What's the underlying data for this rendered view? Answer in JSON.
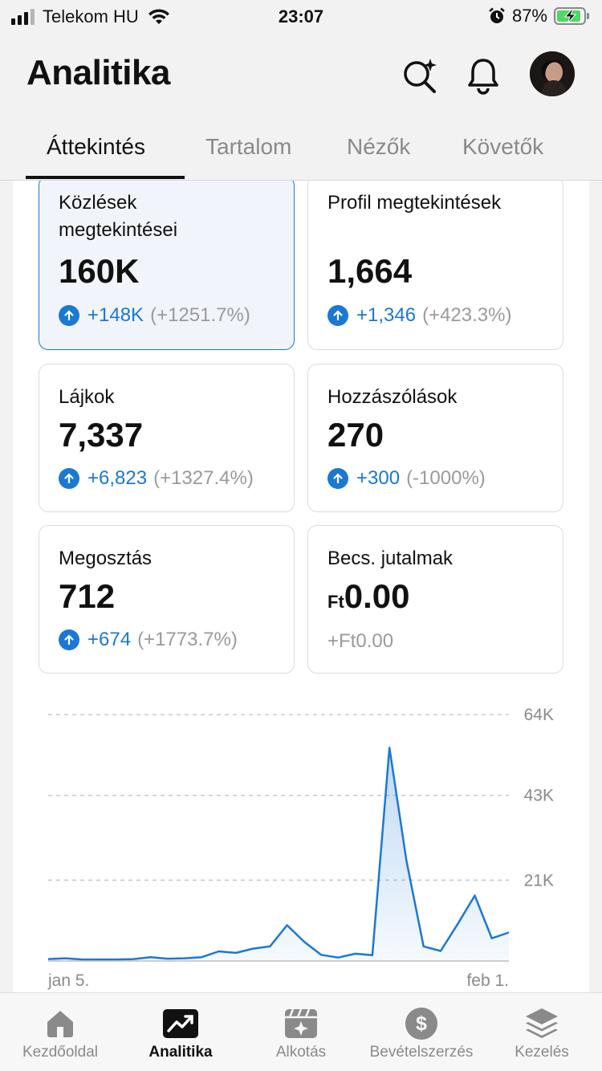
{
  "status_bar": {
    "carrier": "Telekom HU",
    "time": "23:07",
    "battery_percent": "87%"
  },
  "header": {
    "title": "Analitika",
    "icons": [
      "search-sparkle-icon",
      "bell-icon",
      "avatar"
    ]
  },
  "tabs": [
    {
      "label": "Áttekintés",
      "active": true
    },
    {
      "label": "Tartalom",
      "active": false
    },
    {
      "label": "Nézők",
      "active": false
    },
    {
      "label": "Követők",
      "active": false
    }
  ],
  "metrics": {
    "post_views": {
      "label_line1": "Közlések",
      "label_line2": "megtekintései",
      "value": "160K",
      "delta": "+148K",
      "delta_pct": "(+1251.7%)"
    },
    "profile_views": {
      "label": "Profil megtekintések",
      "value": "1,664",
      "delta": "+1,346",
      "delta_pct": "(+423.3%)"
    },
    "likes": {
      "label": "Lájkok",
      "value": "7,337",
      "delta": "+6,823",
      "delta_pct": "(+1327.4%)"
    },
    "comments": {
      "label": "Hozzászólások",
      "value": "270",
      "delta": "+300",
      "delta_pct": "(-1000%)"
    },
    "shares": {
      "label": "Megosztás",
      "value": "712",
      "delta": "+674",
      "delta_pct": "(+1773.7%)"
    },
    "rewards": {
      "label": "Becs. jutalmak",
      "currency": "Ft",
      "value": "0.00",
      "delta": "+Ft0.00"
    }
  },
  "chart_data": {
    "type": "area",
    "title": "",
    "x_start_label": "jan 5.",
    "x_end_label": "feb 1.",
    "y_ticks": [
      "64K",
      "43K",
      "21K"
    ],
    "ylim": [
      0,
      64000
    ],
    "x": [
      "jan 5.",
      "jan 6.",
      "jan 7.",
      "jan 8.",
      "jan 9.",
      "jan 10.",
      "jan 11.",
      "jan 12.",
      "jan 13.",
      "jan 14.",
      "jan 15.",
      "jan 16.",
      "jan 17.",
      "jan 18.",
      "jan 19.",
      "jan 20.",
      "jan 21.",
      "jan 22.",
      "jan 23.",
      "jan 24.",
      "jan 25.",
      "jan 26.",
      "jan 27.",
      "jan 28.",
      "jan 29.",
      "jan 30.",
      "jan 31.",
      "feb 1."
    ],
    "values": [
      500,
      700,
      400,
      400,
      400,
      500,
      1000,
      600,
      700,
      1000,
      2500,
      2100,
      3200,
      3800,
      9300,
      5000,
      1600,
      900,
      1900,
      1500,
      55400,
      26000,
      3800,
      2600,
      9600,
      17000,
      5900,
      7400
    ],
    "color": "#1b78d4"
  },
  "bottom_nav": [
    {
      "label": "Kezdőoldal",
      "icon": "home-icon",
      "active": false
    },
    {
      "label": "Analitika",
      "icon": "analytics-icon",
      "active": true
    },
    {
      "label": "Alkotás",
      "icon": "create-icon",
      "active": false
    },
    {
      "label": "Bevételszerzés",
      "icon": "dollar-icon",
      "active": false
    },
    {
      "label": "Kezelés",
      "icon": "layers-icon",
      "active": false
    }
  ],
  "colors": {
    "accent": "#1b78d4",
    "muted": "#8a8a8a",
    "battery": "#4cd964"
  }
}
